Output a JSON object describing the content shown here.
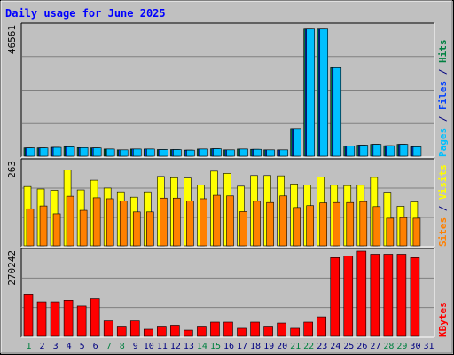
{
  "chart_data": [
    {
      "type": "bar",
      "panel": "hits-files-pages",
      "title": "Daily usage for June 2025",
      "ymax_label": "46561",
      "ylim": [
        0,
        46561
      ],
      "axis_label_parts": [
        {
          "text": "Pages",
          "color": "#00c0ff"
        },
        {
          "text": " / ",
          "color": "#000080"
        },
        {
          "text": "Files",
          "color": "#0040ff"
        },
        {
          "text": " / ",
          "color": "#000080"
        },
        {
          "text": "Hits",
          "color": "#008040"
        }
      ],
      "categories": [
        "1",
        "2",
        "3",
        "4",
        "5",
        "6",
        "7",
        "8",
        "9",
        "10",
        "11",
        "12",
        "13",
        "14",
        "15",
        "16",
        "17",
        "18",
        "19",
        "20",
        "21",
        "22",
        "23",
        "24",
        "25",
        "26",
        "27",
        "28",
        "29",
        "30",
        "31"
      ],
      "series": [
        {
          "name": "Hits",
          "color": "#008040",
          "values": [
            3000,
            3000,
            3200,
            3400,
            3100,
            3000,
            2600,
            2300,
            2600,
            2600,
            2400,
            2400,
            2200,
            2600,
            2700,
            2300,
            2600,
            2500,
            2300,
            2300,
            10000,
            46000,
            46000,
            32000,
            3700,
            4000,
            4300,
            3800,
            4300,
            3400,
            null
          ]
        },
        {
          "name": "Files",
          "color": "#0040ff",
          "values": [
            3000,
            3000,
            3200,
            3400,
            3100,
            3000,
            2600,
            2300,
            2600,
            2600,
            2400,
            2400,
            2200,
            2600,
            2700,
            2300,
            2600,
            2500,
            2300,
            2300,
            10000,
            46000,
            46000,
            32000,
            3700,
            4000,
            4300,
            3800,
            4300,
            3400,
            null
          ]
        },
        {
          "name": "Pages",
          "color": "#00c0ff",
          "values": [
            3000,
            3000,
            3200,
            3400,
            3100,
            3000,
            2600,
            2300,
            2600,
            2600,
            2400,
            2400,
            2200,
            2600,
            2700,
            2300,
            2600,
            2500,
            2300,
            2300,
            10000,
            46000,
            46000,
            32000,
            3700,
            4000,
            4300,
            3800,
            4300,
            3400,
            null
          ]
        }
      ]
    },
    {
      "type": "bar",
      "panel": "visits-sites",
      "ymax_label": "263",
      "ylim": [
        0,
        263
      ],
      "axis_label_parts": [
        {
          "text": "Sites",
          "color": "#ff8000"
        },
        {
          "text": " / ",
          "color": "#000080"
        },
        {
          "text": "Visits",
          "color": "#ffff00"
        }
      ],
      "categories": [
        "1",
        "2",
        "3",
        "4",
        "5",
        "6",
        "7",
        "8",
        "9",
        "10",
        "11",
        "12",
        "13",
        "14",
        "15",
        "16",
        "17",
        "18",
        "19",
        "20",
        "21",
        "22",
        "23",
        "24",
        "25",
        "26",
        "27",
        "28",
        "29",
        "30",
        "31"
      ],
      "series": [
        {
          "name": "Visits",
          "color": "#ffff00",
          "values": [
            189,
            181,
            177,
            242,
            178,
            209,
            184,
            172,
            155,
            172,
            221,
            217,
            216,
            194,
            238,
            231,
            190,
            224,
            224,
            223,
            197,
            194,
            219,
            193,
            192,
            193,
            218,
            171,
            126,
            140,
            null
          ]
        },
        {
          "name": "Sites",
          "color": "#ff8000",
          "values": [
            118,
            127,
            102,
            158,
            113,
            153,
            150,
            143,
            108,
            108,
            152,
            152,
            143,
            150,
            161,
            159,
            109,
            142,
            138,
            159,
            122,
            128,
            137,
            138,
            138,
            141,
            125,
            88,
            90,
            88,
            null
          ]
        }
      ]
    },
    {
      "type": "bar",
      "panel": "kbytes",
      "ymax_label": "270242",
      "ylim": [
        0,
        270242
      ],
      "axis_label_parts": [
        {
          "text": "KBytes",
          "color": "#ff0000"
        }
      ],
      "categories": [
        "1",
        "2",
        "3",
        "4",
        "5",
        "6",
        "7",
        "8",
        "9",
        "10",
        "11",
        "12",
        "13",
        "14",
        "15",
        "16",
        "17",
        "18",
        "19",
        "20",
        "21",
        "22",
        "23",
        "24",
        "25",
        "26",
        "27",
        "28",
        "29",
        "30",
        "31"
      ],
      "series": [
        {
          "name": "KBytes",
          "color": "#ff0000",
          "values": [
            137000,
            112000,
            112000,
            117000,
            98000,
            122000,
            50000,
            33000,
            50000,
            23000,
            33000,
            36000,
            20000,
            33000,
            46000,
            46000,
            26000,
            46000,
            33000,
            43000,
            26000,
            46000,
            63000,
            255000,
            260000,
            276000,
            266000,
            266000,
            266000,
            255000,
            null
          ]
        }
      ]
    }
  ],
  "day_labels": [
    {
      "text": "1",
      "color": "#008040"
    },
    {
      "text": "2",
      "color": "#000080"
    },
    {
      "text": "3",
      "color": "#000080"
    },
    {
      "text": "4",
      "color": "#000080"
    },
    {
      "text": "5",
      "color": "#000080"
    },
    {
      "text": "6",
      "color": "#000080"
    },
    {
      "text": "7",
      "color": "#008040"
    },
    {
      "text": "8",
      "color": "#008040"
    },
    {
      "text": "9",
      "color": "#000080"
    },
    {
      "text": "10",
      "color": "#000080"
    },
    {
      "text": "11",
      "color": "#000080"
    },
    {
      "text": "12",
      "color": "#000080"
    },
    {
      "text": "13",
      "color": "#000080"
    },
    {
      "text": "14",
      "color": "#008040"
    },
    {
      "text": "15",
      "color": "#008040"
    },
    {
      "text": "16",
      "color": "#000080"
    },
    {
      "text": "17",
      "color": "#000080"
    },
    {
      "text": "18",
      "color": "#000080"
    },
    {
      "text": "19",
      "color": "#000080"
    },
    {
      "text": "20",
      "color": "#000080"
    },
    {
      "text": "21",
      "color": "#008040"
    },
    {
      "text": "22",
      "color": "#008040"
    },
    {
      "text": "23",
      "color": "#000080"
    },
    {
      "text": "24",
      "color": "#000080"
    },
    {
      "text": "25",
      "color": "#000080"
    },
    {
      "text": "26",
      "color": "#000080"
    },
    {
      "text": "27",
      "color": "#000080"
    },
    {
      "text": "28",
      "color": "#008040"
    },
    {
      "text": "29",
      "color": "#008040"
    },
    {
      "text": "30",
      "color": "#000080"
    },
    {
      "text": "31",
      "color": "#000080"
    }
  ],
  "colors": {
    "frame_bg": "#c0c0c0",
    "plot_bg": "#c0c0c0",
    "gridline": "#808080",
    "title": "#0000ff",
    "axis_numbers": "#000000"
  }
}
